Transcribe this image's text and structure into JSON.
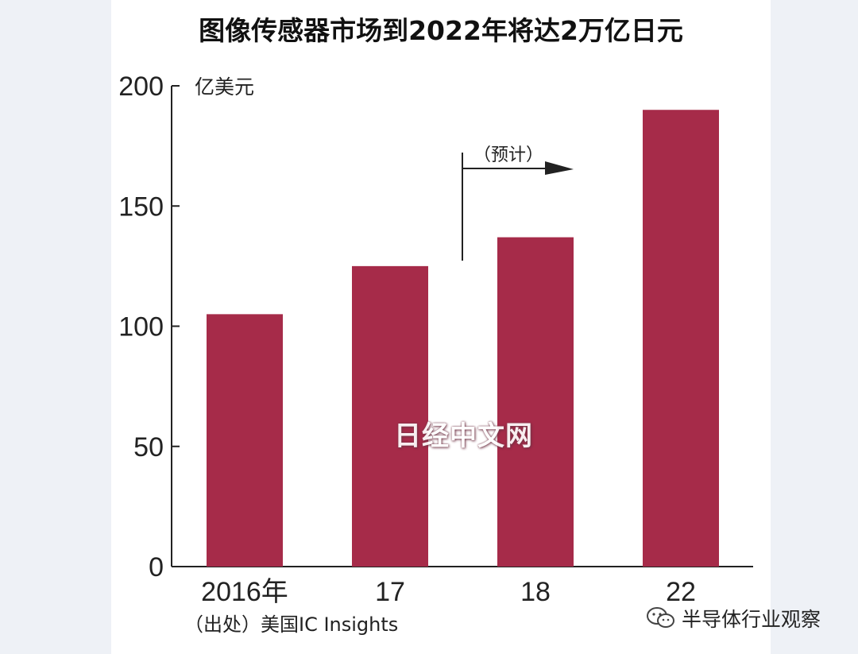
{
  "chart_data": {
    "type": "bar",
    "title": "图像传感器市场到2022年将达2万亿日元",
    "ylabel": "亿美元",
    "categories": [
      "2016年",
      "17",
      "18",
      "22"
    ],
    "values": [
      105,
      125,
      137,
      190
    ],
    "ylim": [
      0,
      200
    ],
    "yticks": [
      0,
      50,
      100,
      150,
      200
    ],
    "annotation": "（预计）",
    "source": "（出处）美国IC Insights",
    "bar_color": "#a62b49",
    "grid": false
  },
  "watermark": "日经中文网",
  "brand": {
    "name": "半导体行业观察",
    "icon": "wechat-icon"
  }
}
